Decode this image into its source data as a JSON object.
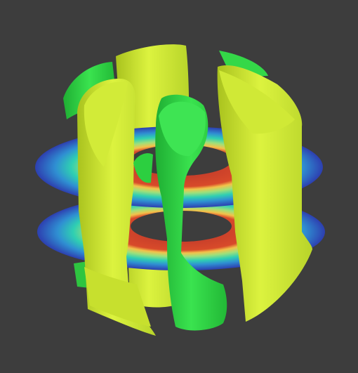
{
  "viewport": {
    "background_color": "#3d3d3d"
  },
  "scene": {
    "surfaces": [
      {
        "name": "isosurface-yellow",
        "color": "#d7f03c"
      },
      {
        "name": "isosurface-green",
        "color": "#36e24a"
      }
    ],
    "slices": {
      "count": 2,
      "colormap": [
        "#2d3fb0",
        "#2f8fd2",
        "#2fcfb2",
        "#9ee07a",
        "#f3c24a",
        "#d84a2a"
      ]
    }
  }
}
